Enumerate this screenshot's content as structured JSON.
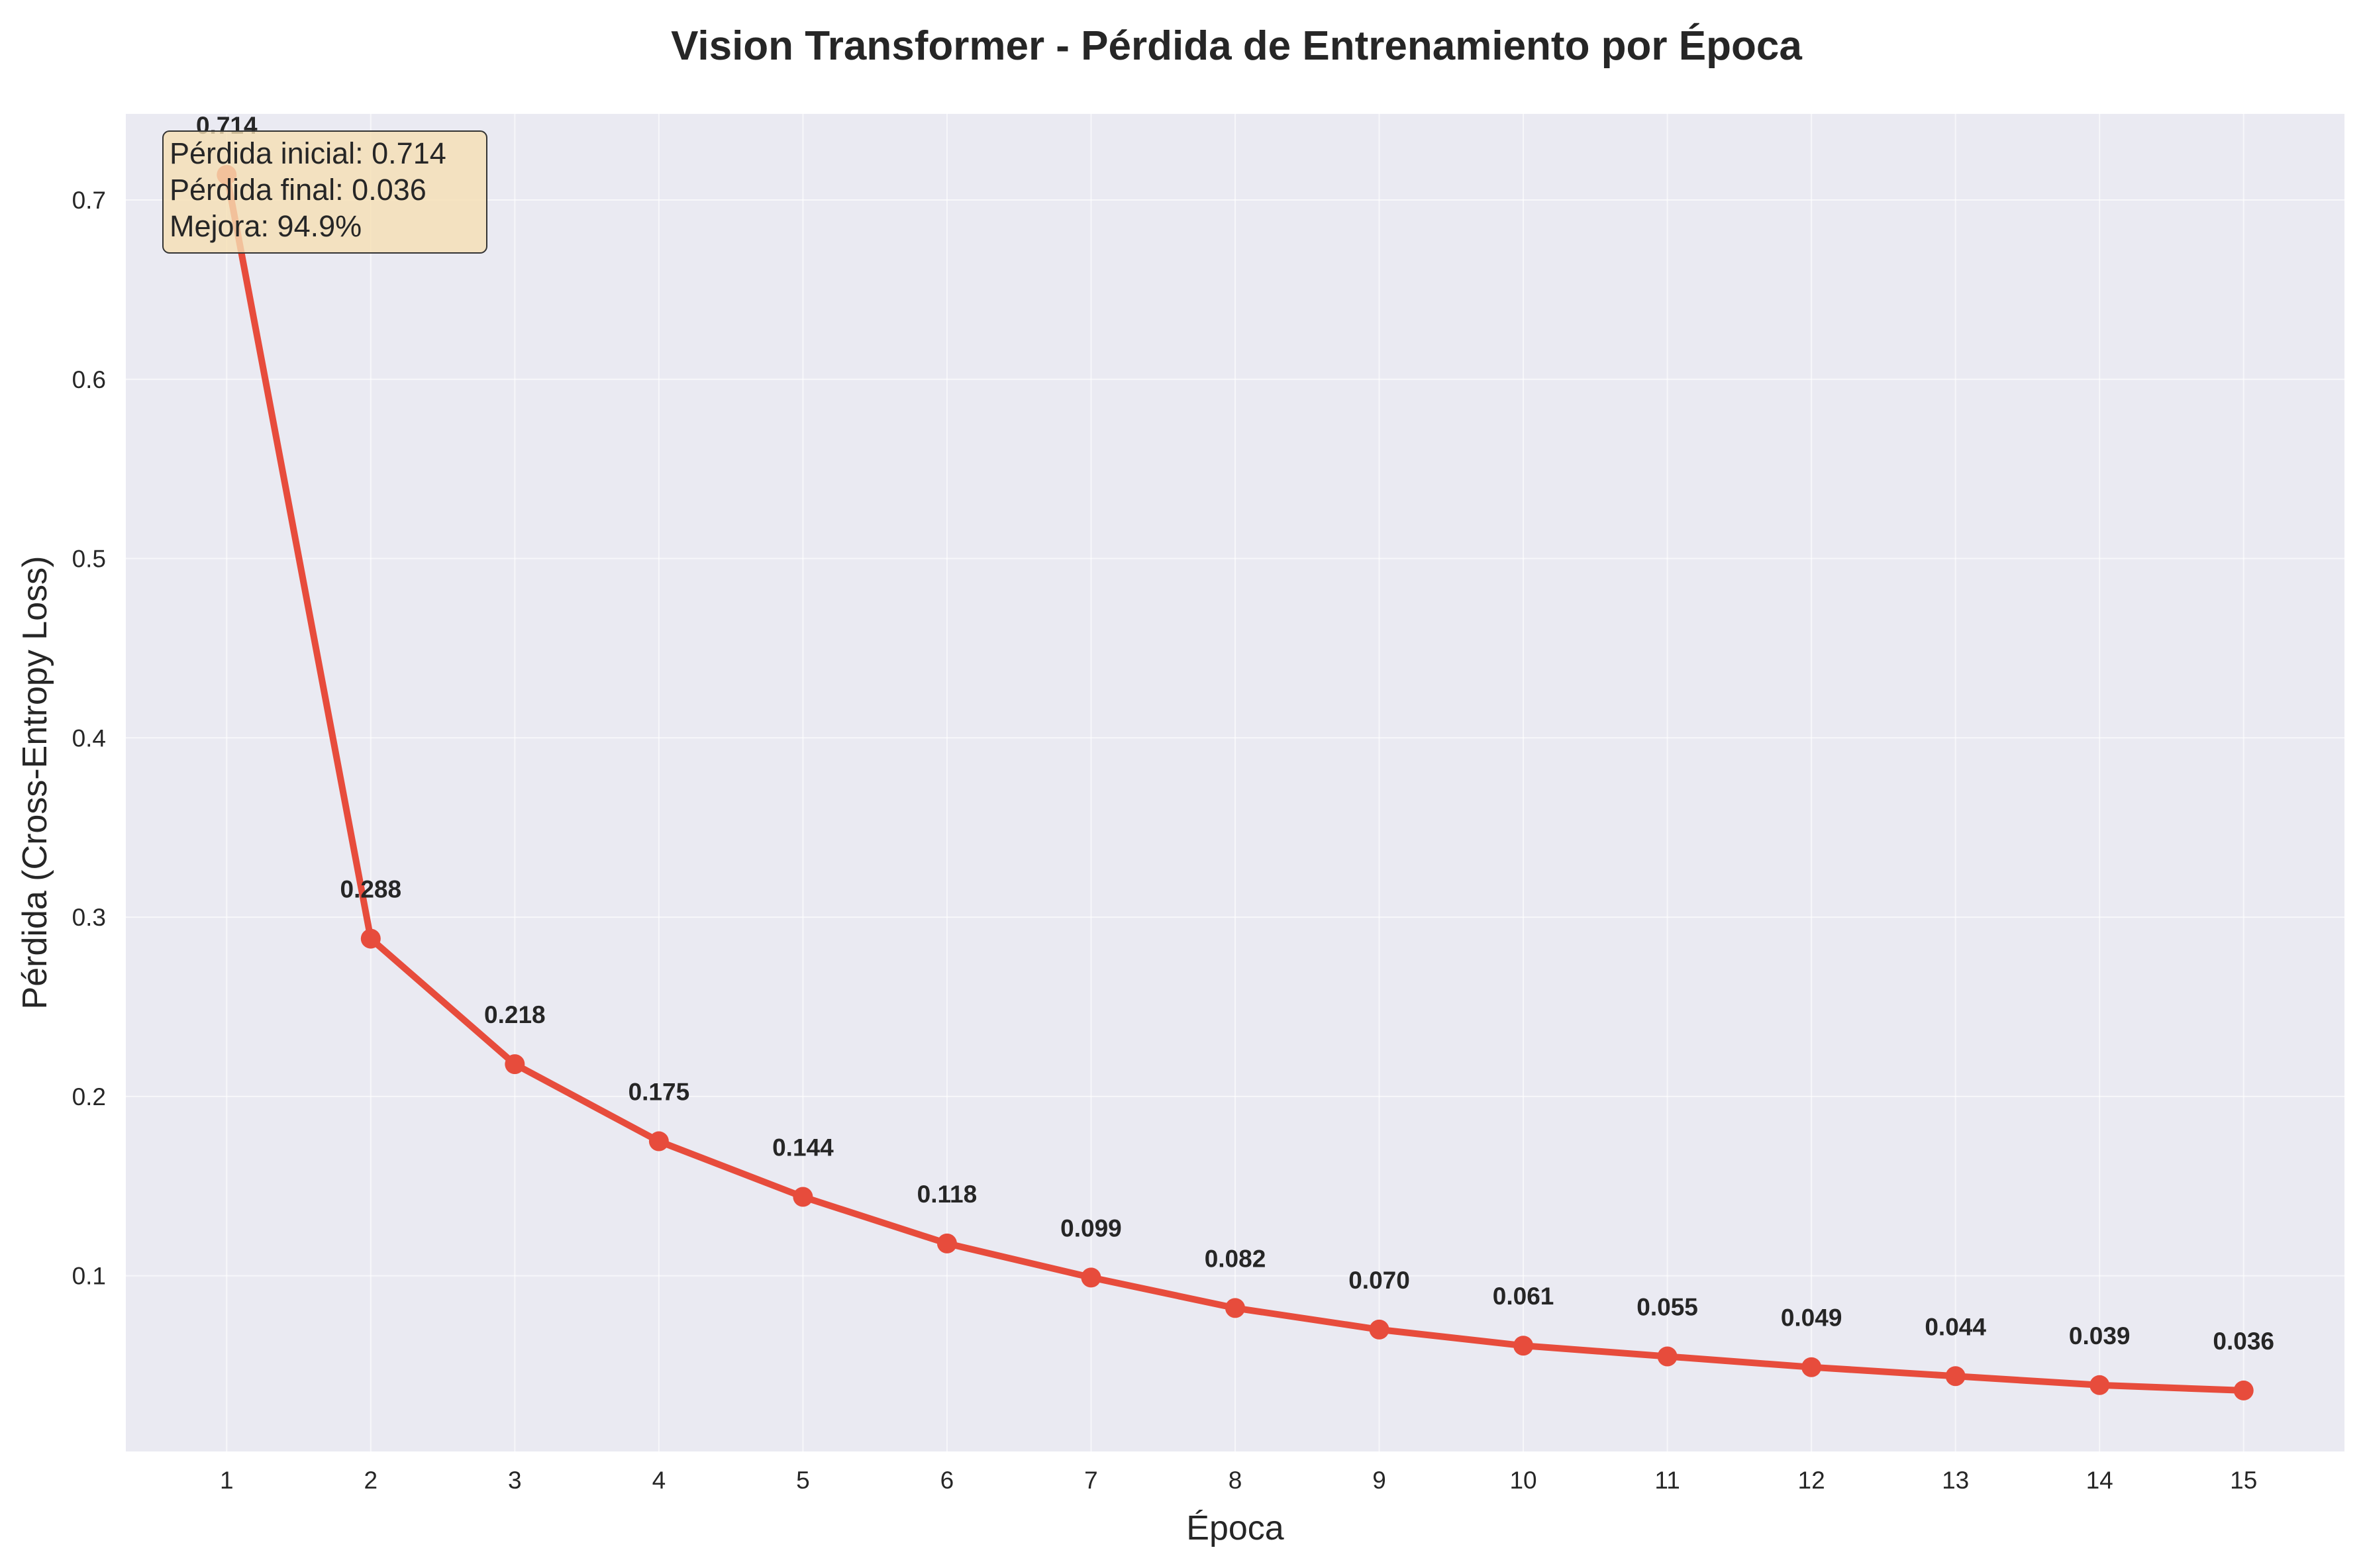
{
  "colors": {
    "line": "#e74c3c",
    "plot_background": "#eaeaf2",
    "grid": "#ffffff",
    "text": "#262626",
    "info_box_fill": "#f5deb3",
    "info_box_stroke": "#333333"
  },
  "info_box": {
    "line1": "Pérdida inicial: 0.714",
    "line2": "Pérdida final: 0.036",
    "line3": "Mejora: 94.9%"
  },
  "chart_data": {
    "type": "line",
    "title": "Vision Transformer - Pérdida de Entrenamiento por Época",
    "xlabel": "Época",
    "ylabel": "Pérdida (Cross-Entropy Loss)",
    "x": [
      1,
      2,
      3,
      4,
      5,
      6,
      7,
      8,
      9,
      10,
      11,
      12,
      13,
      14,
      15
    ],
    "values": [
      0.714,
      0.288,
      0.218,
      0.175,
      0.144,
      0.118,
      0.099,
      0.082,
      0.07,
      0.061,
      0.055,
      0.049,
      0.044,
      0.039,
      0.036
    ],
    "data_labels": [
      "0.714",
      "0.288",
      "0.218",
      "0.175",
      "0.144",
      "0.118",
      "0.099",
      "0.082",
      "0.070",
      "0.061",
      "0.055",
      "0.049",
      "0.044",
      "0.039",
      "0.036"
    ],
    "x_ticks": [
      "1",
      "2",
      "3",
      "4",
      "5",
      "6",
      "7",
      "8",
      "9",
      "10",
      "11",
      "12",
      "13",
      "14",
      "15"
    ],
    "y_ticks": [
      0.1,
      0.2,
      0.3,
      0.4,
      0.5,
      0.6,
      0.7
    ],
    "y_tick_labels": [
      "0.1",
      "0.2",
      "0.3",
      "0.4",
      "0.5",
      "0.6",
      "0.7"
    ],
    "xlim": [
      0.3,
      15.7
    ],
    "ylim": [
      0.002,
      0.748
    ],
    "grid": true,
    "markers": true
  }
}
